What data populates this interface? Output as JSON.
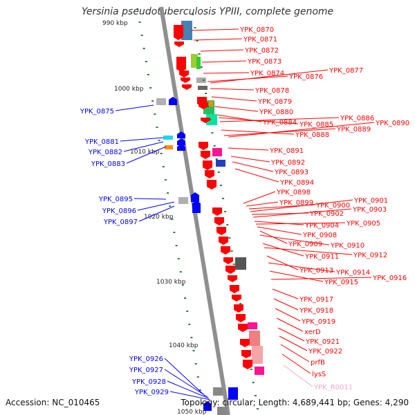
{
  "title": "Yersinia pseudotuberculosis YPIII, complete genome",
  "footer": {
    "accession": "Accession: NC_010465",
    "summary": "Topology: circular; Length: 4,689,441 bp; Genes: 4,290"
  },
  "colors": {
    "backbone": "#8f8f8f",
    "forward_strand": "#0000ff",
    "reverse_strand": "#ff0000",
    "rna": "#f4a6c6",
    "tick": "#2e7d32",
    "scale_text": "#222222"
  },
  "scale_labels": [
    {
      "label": "990 kbp",
      "pos_kbp": 990
    },
    {
      "label": "1000 kbp",
      "pos_kbp": 1000
    },
    {
      "label": "1010 kbp",
      "pos_kbp": 1010
    },
    {
      "label": "1020 kbp",
      "pos_kbp": 1020
    },
    {
      "label": "1030 kbp",
      "pos_kbp": 1030
    },
    {
      "label": "1040 kbp",
      "pos_kbp": 1040
    },
    {
      "label": "1050 kbp",
      "pos_kbp": 1050
    }
  ],
  "forward_genes": [
    "YPK_0875",
    "YPK_0881",
    "YPK_0882",
    "YPK_0883",
    "YPK_0895",
    "YPK_0896",
    "YPK_0897",
    "YPK_0926",
    "YPK_0927",
    "YPK_0928",
    "YPK_0929"
  ],
  "reverse_genes": [
    "YPK_0870",
    "YPK_0871",
    "YPK_0872",
    "YPK_0873",
    "YPK_0874",
    "YPK_0876",
    "YPK_0877",
    "YPK_0878",
    "YPK_0879",
    "YPK_0880",
    "YPK_0884",
    "YPK_0885",
    "YPK_0886",
    "YPK_0888",
    "YPK_0889",
    "YPK_0890",
    "YPK_0891",
    "YPK_0892",
    "YPK_0893",
    "YPK_0894",
    "YPK_0898",
    "YPK_0899",
    "YPK_0900",
    "YPK_0901",
    "YPK_0902",
    "YPK_0903",
    "YPK_0904",
    "YPK_0905",
    "YPK_0908",
    "YPK_0909",
    "YPK_0910",
    "YPK_0911",
    "YPK_0912",
    "YPK_0913",
    "YPK_0914",
    "YPK_0915",
    "YPK_0916",
    "YPK_0917",
    "YPK_0918",
    "YPK_0919",
    "xerD",
    "YPK_0921",
    "YPK_0922",
    "prfB",
    "lysS"
  ],
  "rna_genes": [
    "YPK_R0011"
  ]
}
